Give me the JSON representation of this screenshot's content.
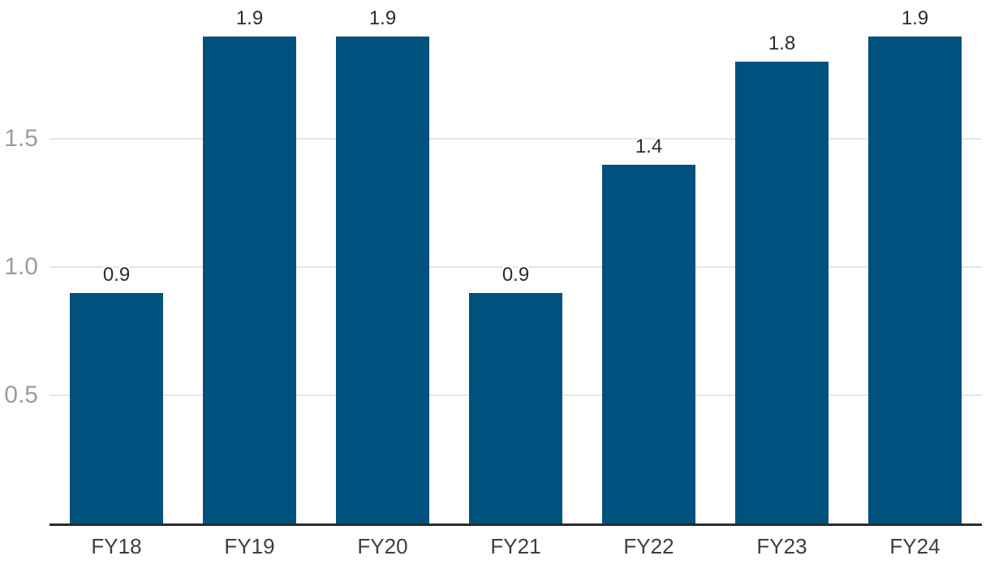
{
  "chart_data": {
    "type": "bar",
    "categories": [
      "FY18",
      "FY19",
      "FY20",
      "FY21",
      "FY22",
      "FY23",
      "FY24"
    ],
    "values": [
      0.9,
      1.9,
      1.9,
      0.9,
      1.4,
      1.8,
      1.9
    ],
    "value_labels": [
      "0.9",
      "1.9",
      "1.9",
      "0.9",
      "1.4",
      "1.8",
      "1.9"
    ],
    "title": "",
    "xlabel": "",
    "ylabel": "",
    "y_ticks": [
      0.5,
      1.0,
      1.5
    ],
    "y_tick_labels": [
      "0.5",
      "1.0",
      "1.5"
    ],
    "ylim": [
      0,
      2.04
    ],
    "grid": true,
    "legend": false,
    "data_labels_shown": true,
    "colors": {
      "bar": "#00517D",
      "gridline": "#e6e6e6",
      "axis_line": "#2b2b2b",
      "tick_label": "#9c9c9c",
      "value_label": "#2b2b2b",
      "category_label": "#3f3f3f",
      "background": "#ffffff"
    }
  }
}
